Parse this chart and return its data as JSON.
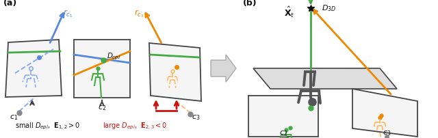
{
  "fig_width": 6.4,
  "fig_height": 2.02,
  "dpi": 100,
  "bg_color": "#ffffff",
  "label_a": "(a)",
  "label_b": "(b)",
  "text_c1": "$c_1$",
  "text_c2": "$c_2$",
  "text_c3": "$c_3$",
  "text_rc1": "$r_{c_1}$",
  "text_rc3": "$r_{c_3}$",
  "text_dcpi": "$D_{cpi}$",
  "text_d3d": "$D_{3D}$",
  "text_xt": "$\\hat{\\mathbf{X}}_t$",
  "caption_black": "small $D_{epi}$,  $\\mathbf{E}_{1,2} > 0$",
  "caption_red": "large $D_{epi}$,  $\\mathbf{E}_{2,3} < 0$",
  "color_blue": "#5588DD",
  "color_blue_light": "#88AAEE",
  "color_orange": "#EE8800",
  "color_orange_light": "#FFBB66",
  "color_green": "#44AA44",
  "color_green_light": "#88CC88",
  "color_darkgray": "#444444",
  "color_midgray": "#888888",
  "color_lightgray": "#CCCCCC",
  "color_panelgray": "#EEEEEE",
  "color_groundgray": "#DDDDDD",
  "color_red": "#CC1111",
  "color_black": "#111111"
}
